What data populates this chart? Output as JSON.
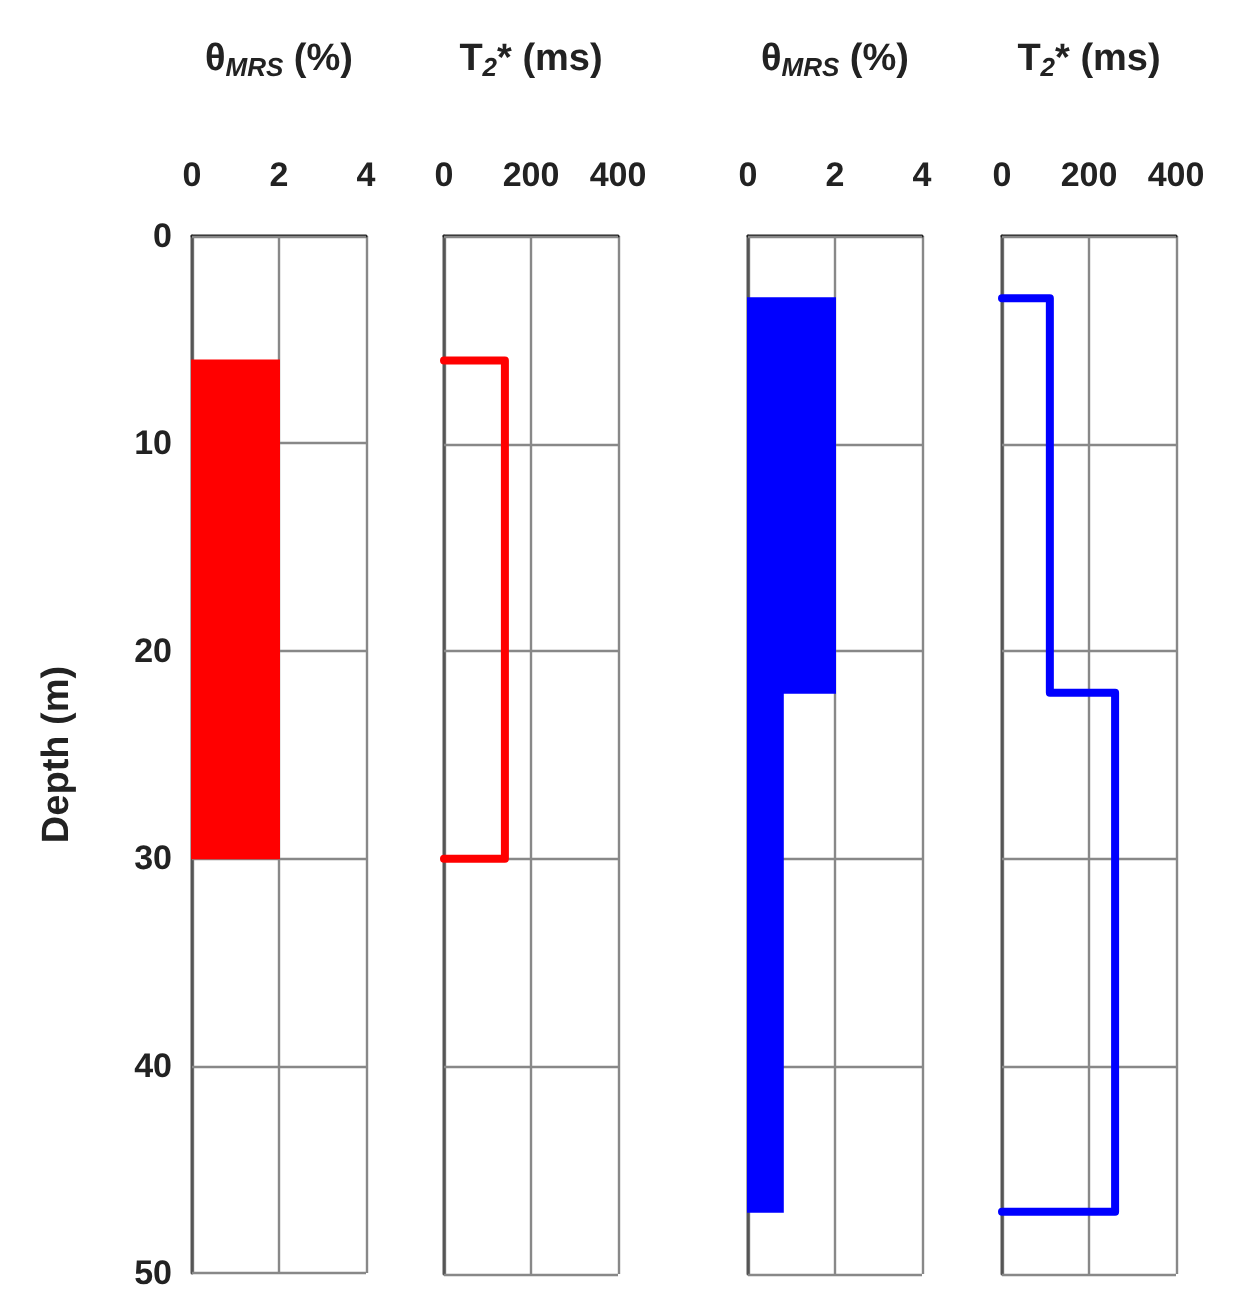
{
  "chart_data": [
    {
      "type": "area",
      "xlabel": "θ$_{MRS}$ (%)",
      "ylabel": "Depth (m)",
      "xlim": [
        0,
        4
      ],
      "xticks": [
        0,
        2,
        4
      ],
      "ylim": [
        50,
        0
      ],
      "yticks": [
        0,
        10,
        20,
        30,
        40,
        50
      ],
      "grid": true,
      "series": [
        {
          "color": "#ff0000",
          "x": [
            0,
            2,
            2,
            0
          ],
          "values": [
            6,
            6,
            30,
            30
          ]
        }
      ]
    },
    {
      "type": "line",
      "xlabel": "T$_{2}$* (ms)",
      "xlim": [
        0,
        400
      ],
      "xticks": [
        0,
        200,
        400
      ],
      "ylim": [
        50,
        0
      ],
      "yticks": [
        0,
        10,
        20,
        30,
        40,
        50
      ],
      "grid": true,
      "tick_labels": "x",
      "marker": "none",
      "series": [
        {
          "color": "#ff0000",
          "x": [
            0,
            140,
            140,
            0
          ],
          "values": [
            6,
            6,
            30,
            30
          ]
        }
      ]
    },
    {
      "type": "area",
      "xlabel": "θ$_{MRS}$ (%)",
      "xlim": [
        0,
        4
      ],
      "xticks": [
        0,
        2,
        4
      ],
      "ylim": [
        50,
        0
      ],
      "yticks": [
        0,
        10,
        20,
        30,
        40,
        50
      ],
      "grid": true,
      "tick_labels": "x",
      "series": [
        {
          "color": "#0000ff",
          "x": [
            0,
            2,
            2,
            0
          ],
          "values": [
            3,
            3,
            22,
            22
          ]
        },
        {
          "color": "#0000ff",
          "x": [
            0,
            0.8,
            0.8,
            0
          ],
          "values": [
            22,
            22,
            47,
            47
          ]
        }
      ]
    },
    {
      "type": "line",
      "xlabel": "T$_{2}$* (ms)",
      "xlim": [
        0,
        400
      ],
      "xticks": [
        0,
        200,
        400
      ],
      "ylim": [
        50,
        0
      ],
      "yticks": [
        0,
        10,
        20,
        30,
        40,
        50
      ],
      "grid": true,
      "tick_labels": "x",
      "marker": "none",
      "series": [
        {
          "color": "#0000ff",
          "x": [
            0,
            110,
            110,
            260,
            260,
            0
          ],
          "values": [
            3,
            3,
            22,
            22,
            47,
            47
          ]
        }
      ]
    }
  ]
}
